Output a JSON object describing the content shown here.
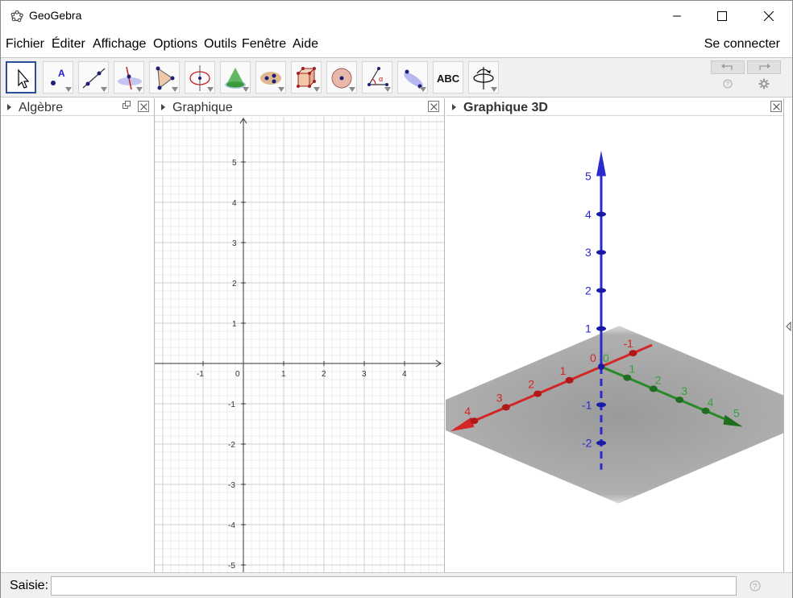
{
  "window": {
    "title": "GeoGebra",
    "controls": [
      "minimize",
      "maximize",
      "close"
    ]
  },
  "menu": {
    "items": [
      "Fichier",
      "Éditer",
      "Affichage",
      "Options",
      "Outils",
      "Fenêtre",
      "Aide"
    ],
    "sign_in": "Se connecter"
  },
  "toolbar": {
    "tools": [
      {
        "name": "move-tool-icon",
        "selected": true
      },
      {
        "name": "point-tool-icon",
        "label": "A"
      },
      {
        "name": "line-tool-icon"
      },
      {
        "name": "perpendicular-tool-icon"
      },
      {
        "name": "polygon-tool-icon"
      },
      {
        "name": "circle-tool-icon"
      },
      {
        "name": "cone-tool-icon"
      },
      {
        "name": "intersect-tool-icon"
      },
      {
        "name": "cube-tool-icon"
      },
      {
        "name": "sphere-tool-icon"
      },
      {
        "name": "angle-tool-icon",
        "label": "α"
      },
      {
        "name": "reflect-tool-icon"
      },
      {
        "name": "text-tool-icon",
        "label": "ABC"
      },
      {
        "name": "rotate-view-tool-icon"
      }
    ],
    "undo": "undo-icon",
    "redo": "redo-icon",
    "help": "help-icon",
    "settings": "gear-icon"
  },
  "panels": {
    "algebra": {
      "title": "Algèbre"
    },
    "graphics": {
      "title": "Graphique"
    },
    "graphics3d": {
      "title": "Graphique 3D"
    }
  },
  "graphics2d": {
    "x_ticks": [
      "-1",
      "0",
      "1",
      "2",
      "3",
      "4"
    ],
    "y_ticks": [
      "5",
      "4",
      "3",
      "2",
      "1",
      "-1",
      "-2",
      "-3",
      "-4",
      "-5"
    ]
  },
  "graphics3d": {
    "x_axis_labels": [
      "4",
      "3",
      "2",
      "1",
      "-1"
    ],
    "y_axis_labels": [
      "1",
      "2",
      "3",
      "4",
      "5"
    ],
    "z_axis_labels": [
      "5",
      "4",
      "3",
      "2",
      "1",
      "-1",
      "-2"
    ],
    "origin_labels": [
      "0",
      "0"
    ],
    "colors": {
      "x": "#d32626",
      "y": "#2a8a2a",
      "z": "#2a2ad0",
      "plane": "#b0b0b0"
    }
  },
  "input_bar": {
    "label": "Saisie:",
    "value": "",
    "placeholder": ""
  }
}
